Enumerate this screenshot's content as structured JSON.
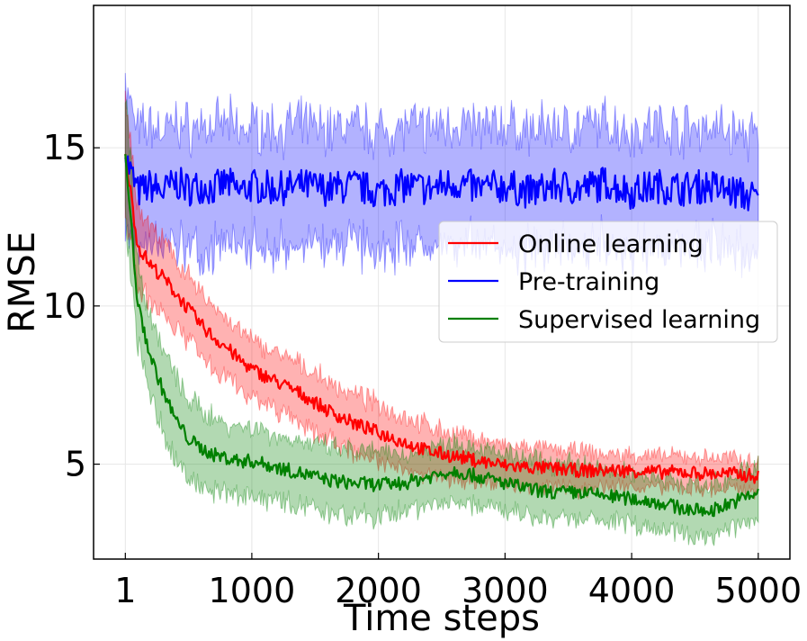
{
  "chart_data": {
    "type": "line",
    "xlabel": "Time steps",
    "ylabel": "RMSE",
    "xlim": [
      -250,
      5250
    ],
    "ylim": [
      2.0,
      19.5
    ],
    "xticks": [
      1,
      1000,
      2000,
      3000,
      4000,
      5000
    ],
    "xtick_labels": [
      "1",
      "1000",
      "2000",
      "3000",
      "4000",
      "5000"
    ],
    "yticks": [
      5,
      10,
      15
    ],
    "ytick_labels": [
      "5",
      "10",
      "15"
    ],
    "grid": true,
    "legend_position": "center-right",
    "shaded_band": "variability band around each series",
    "series": [
      {
        "name": "Online learning",
        "color": "#ff0000",
        "x": [
          1,
          100,
          200,
          300,
          400,
          500,
          600,
          700,
          800,
          900,
          1000,
          1200,
          1400,
          1600,
          1800,
          2000,
          2200,
          2400,
          2600,
          2800,
          3000,
          3200,
          3400,
          3600,
          3800,
          4000,
          4200,
          4400,
          4600,
          4800,
          5000
        ],
        "mean": [
          14.8,
          11.9,
          11.3,
          10.9,
          10.4,
          9.9,
          9.4,
          9.0,
          8.7,
          8.3,
          8.0,
          7.6,
          7.2,
          6.7,
          6.3,
          6.0,
          5.7,
          5.4,
          5.25,
          5.1,
          4.95,
          4.9,
          4.85,
          4.8,
          4.8,
          4.8,
          4.75,
          4.75,
          4.7,
          4.7,
          4.6
        ],
        "band_halfwidth": [
          1.8,
          1.2,
          1.2,
          1.1,
          1.1,
          1.0,
          1.0,
          1.0,
          0.9,
          0.9,
          0.9,
          0.9,
          0.9,
          0.9,
          0.9,
          0.9,
          0.8,
          0.8,
          0.7,
          0.7,
          0.6,
          0.6,
          0.6,
          0.6,
          0.5,
          0.5,
          0.5,
          0.5,
          0.5,
          0.5,
          0.5
        ]
      },
      {
        "name": "Pre-training",
        "color": "#0000ff",
        "x": [
          1,
          100,
          200,
          300,
          400,
          500,
          600,
          700,
          800,
          900,
          1000,
          1200,
          1400,
          1600,
          1800,
          2000,
          2200,
          2400,
          2600,
          2800,
          3000,
          3200,
          3400,
          3600,
          3800,
          4000,
          4200,
          4400,
          4600,
          4800,
          5000
        ],
        "mean": [
          14.7,
          13.6,
          13.8,
          13.6,
          13.9,
          13.7,
          13.8,
          13.7,
          13.9,
          13.6,
          13.8,
          13.7,
          13.8,
          13.7,
          13.8,
          13.6,
          13.8,
          13.7,
          13.9,
          13.7,
          13.8,
          13.6,
          13.8,
          13.7,
          13.9,
          13.6,
          13.8,
          13.7,
          13.8,
          13.6,
          13.4
        ],
        "band_halfwidth": [
          2.2,
          1.9,
          1.9,
          1.9,
          1.9,
          1.9,
          1.9,
          1.9,
          1.9,
          1.9,
          1.9,
          1.9,
          1.9,
          1.9,
          1.9,
          1.9,
          1.9,
          1.9,
          1.9,
          1.9,
          1.9,
          1.9,
          1.9,
          1.9,
          1.9,
          1.9,
          1.9,
          1.9,
          1.9,
          1.9,
          1.9
        ]
      },
      {
        "name": "Supervised learning",
        "color": "#008000",
        "x": [
          1,
          100,
          200,
          300,
          400,
          500,
          600,
          700,
          800,
          900,
          1000,
          1200,
          1400,
          1600,
          1800,
          2000,
          2200,
          2400,
          2600,
          2800,
          3000,
          3200,
          3400,
          3600,
          3800,
          4000,
          4200,
          4400,
          4600,
          4800,
          5000
        ],
        "mean": [
          14.8,
          10.0,
          8.4,
          7.3,
          6.4,
          5.8,
          5.5,
          5.3,
          5.2,
          5.1,
          5.1,
          4.9,
          4.7,
          4.5,
          4.4,
          4.35,
          4.4,
          4.6,
          4.8,
          4.6,
          4.4,
          4.2,
          4.1,
          4.1,
          4.0,
          3.9,
          3.8,
          3.6,
          3.5,
          3.8,
          4.1
        ],
        "band_halfwidth": [
          2.0,
          1.3,
          1.3,
          1.3,
          1.3,
          1.2,
          1.2,
          1.2,
          1.1,
          1.1,
          1.1,
          1.0,
          1.0,
          1.0,
          1.0,
          1.0,
          0.9,
          0.9,
          0.9,
          0.9,
          0.9,
          0.9,
          0.9,
          0.9,
          0.8,
          0.8,
          0.8,
          0.8,
          0.8,
          0.8,
          0.9
        ]
      }
    ]
  }
}
